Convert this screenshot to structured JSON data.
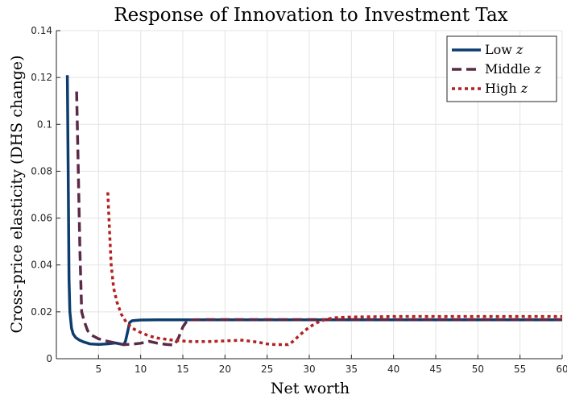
{
  "chart_data": {
    "type": "line",
    "title": "Response of Innovation to Investment Tax",
    "xlabel": "Net worth",
    "ylabel": "Cross-price elasticity (DHS change)",
    "xlim": [
      0,
      60
    ],
    "ylim": [
      0,
      0.14
    ],
    "xticks": [
      5,
      10,
      15,
      20,
      25,
      30,
      35,
      40,
      45,
      50,
      55,
      60
    ],
    "yticks": [
      0,
      0.02,
      0.04,
      0.06,
      0.08,
      0.1,
      0.12,
      0.14
    ],
    "xtick_labels": [
      "5",
      "10",
      "15",
      "20",
      "25",
      "30",
      "35",
      "40",
      "45",
      "50",
      "55",
      "60"
    ],
    "ytick_labels": [
      "0",
      "0.02",
      "0.04",
      "0.06",
      "0.08",
      "0.1",
      "0.12",
      "0.14"
    ],
    "grid": true,
    "legend_position": "top-right",
    "series": [
      {
        "name": "Low z",
        "name_text": "Low ",
        "name_var": "z",
        "color": "#0d3d6e",
        "style": "solid",
        "x": [
          1.3,
          1.4,
          1.5,
          1.6,
          1.8,
          2.0,
          2.3,
          2.7,
          3.2,
          4.0,
          5.0,
          6.0,
          7.0,
          8.0,
          8.2,
          8.7,
          9.0,
          10,
          12,
          15,
          20,
          25,
          30,
          35,
          40,
          45,
          50,
          55,
          60
        ],
        "y": [
          0.121,
          0.08,
          0.034,
          0.02,
          0.013,
          0.0105,
          0.009,
          0.008,
          0.0072,
          0.0063,
          0.0061,
          0.0063,
          0.0067,
          0.006,
          0.0075,
          0.0155,
          0.0162,
          0.0165,
          0.0166,
          0.0166,
          0.0166,
          0.0166,
          0.0166,
          0.0166,
          0.0166,
          0.0166,
          0.0166,
          0.0166,
          0.0166
        ]
      },
      {
        "name": "Middle z",
        "name_text": "Middle ",
        "name_var": "z",
        "color": "#5c2a48",
        "style": "dashed",
        "x": [
          2.4,
          2.6,
          2.8,
          3.0,
          3.3,
          3.7,
          4.2,
          5.0,
          6.0,
          7.0,
          8.0,
          9.0,
          10,
          11,
          12,
          13,
          14,
          14.5,
          15,
          15.5,
          16,
          18,
          20,
          25,
          30,
          35,
          40,
          45,
          50,
          55,
          60
        ],
        "y": [
          0.114,
          0.08,
          0.045,
          0.02,
          0.016,
          0.012,
          0.01,
          0.0085,
          0.0075,
          0.0067,
          0.006,
          0.0062,
          0.0066,
          0.0074,
          0.0066,
          0.0061,
          0.0058,
          0.009,
          0.0135,
          0.0162,
          0.0166,
          0.0167,
          0.0167,
          0.0167,
          0.0167,
          0.0167,
          0.0167,
          0.0167,
          0.0167,
          0.0167,
          0.0167
        ]
      },
      {
        "name": "High z",
        "name_text": "High ",
        "name_var": "z",
        "color": "#b22222",
        "style": "dotted",
        "x": [
          6.1,
          6.3,
          6.5,
          6.8,
          7.2,
          7.7,
          8.3,
          9.0,
          10,
          11,
          12,
          14,
          16,
          18,
          20,
          22,
          24,
          25,
          26,
          27.5,
          28,
          29,
          30,
          31,
          32,
          33,
          35,
          40,
          45,
          50,
          55,
          60
        ],
        "y": [
          0.071,
          0.055,
          0.04,
          0.03,
          0.024,
          0.019,
          0.0155,
          0.013,
          0.0112,
          0.0097,
          0.0088,
          0.0078,
          0.0073,
          0.0073,
          0.0076,
          0.0079,
          0.007,
          0.0063,
          0.006,
          0.006,
          0.0072,
          0.0105,
          0.0135,
          0.0155,
          0.0168,
          0.0175,
          0.0178,
          0.018,
          0.018,
          0.018,
          0.018,
          0.018
        ]
      }
    ]
  }
}
